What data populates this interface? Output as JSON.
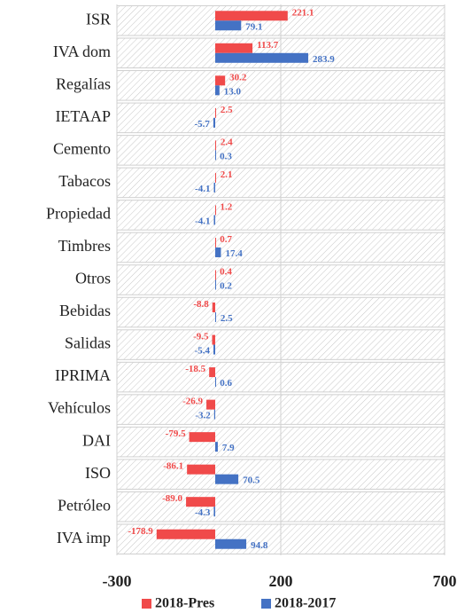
{
  "chart_data": {
    "type": "hbar",
    "categories": [
      "ISR",
      "IVA dom",
      "Regalías",
      "IETAAP",
      "Cemento",
      "Tabacos",
      "Propiedad",
      "Timbres",
      "Otros",
      "Bebidas",
      "Salidas",
      "IPRIMA",
      "Vehículos",
      "DAI",
      "ISO",
      "Petróleo",
      "IVA imp"
    ],
    "series": [
      {
        "name": "2018-Pres",
        "color": "#f04a4a",
        "values": [
          221.1,
          113.7,
          30.2,
          2.5,
          2.4,
          2.1,
          1.2,
          0.7,
          0.4,
          -8.8,
          -9.5,
          -18.5,
          -26.9,
          -79.5,
          -86.1,
          -89.0,
          -178.9
        ],
        "value_labels": [
          "221.1",
          "113.7",
          "30.2",
          "2.5",
          "2.4",
          "2.1",
          "1.2",
          "0.7",
          "0.4",
          "-8.8",
          "-9.5",
          "-18.5",
          "-26.9",
          "-79.5",
          "-86.1",
          "-89.0",
          "-178.9"
        ]
      },
      {
        "name": "2018-2017",
        "color": "#4472c4",
        "values": [
          79.1,
          283.9,
          13.0,
          -5.7,
          0.3,
          -4.1,
          -4.1,
          17.4,
          0.2,
          2.5,
          -5.4,
          0.6,
          -3.2,
          7.9,
          70.5,
          -4.3,
          94.8
        ],
        "value_labels": [
          "79.1",
          "283.9",
          "13.0",
          "-5.7",
          "0.3",
          "-4.1",
          "-4.1",
          "17.4",
          "0.2",
          "2.5",
          "-5.4",
          "0.6",
          "-3.2",
          "7.9",
          "70.5",
          "-4.3",
          "94.8"
        ]
      }
    ],
    "xlim": [
      -300,
      700
    ],
    "xticks": [
      -300,
      200,
      700
    ],
    "grid": true
  }
}
